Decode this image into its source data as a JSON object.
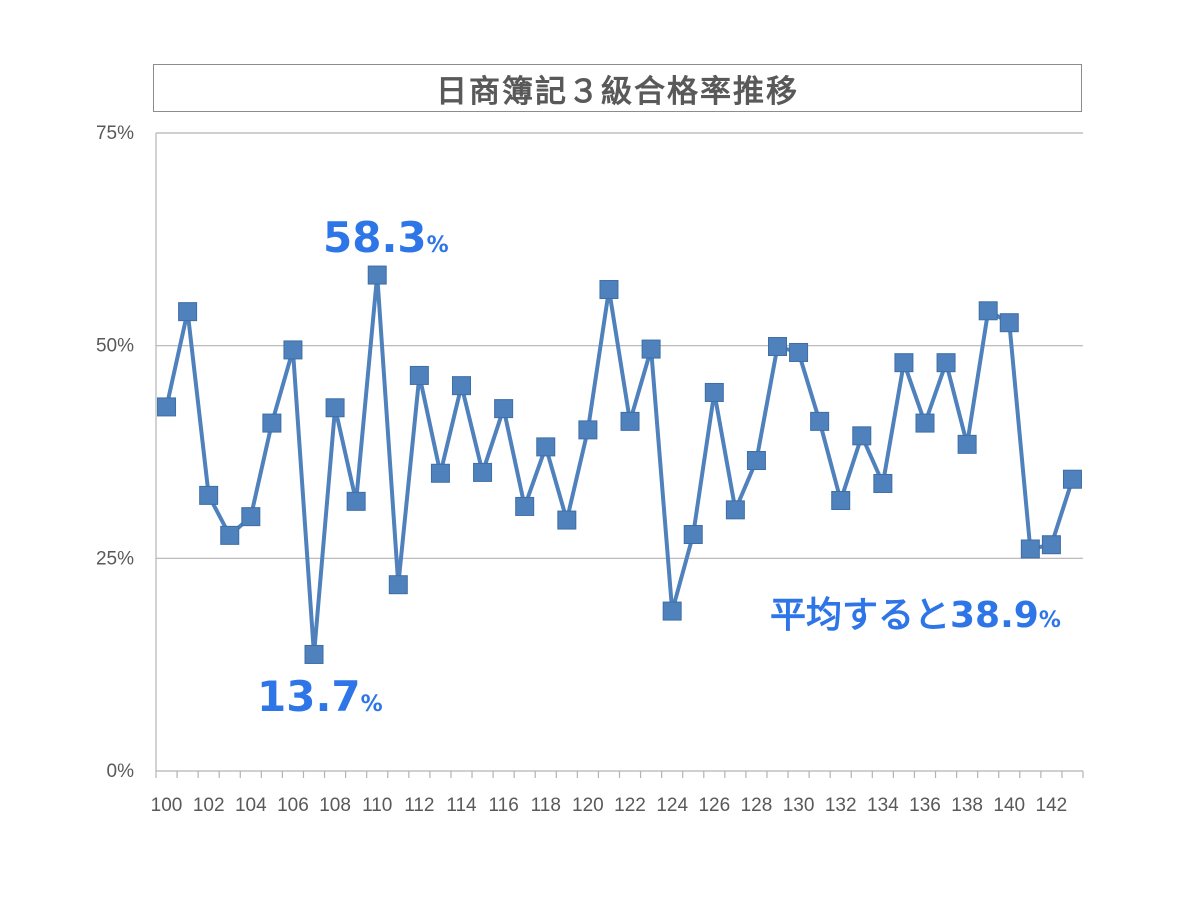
{
  "chart_data": {
    "type": "line",
    "title": "日商簿記３級合格率推移",
    "xlabel": "",
    "ylabel": "",
    "x": [
      100,
      101,
      102,
      103,
      104,
      105,
      106,
      107,
      108,
      109,
      110,
      111,
      112,
      113,
      114,
      115,
      116,
      117,
      118,
      119,
      120,
      121,
      122,
      123,
      124,
      125,
      126,
      127,
      128,
      129,
      130,
      131,
      132,
      133,
      134,
      135,
      136,
      137,
      138,
      139,
      140,
      141,
      142,
      143
    ],
    "x_tick_labels": [
      "100",
      "102",
      "104",
      "106",
      "108",
      "110",
      "112",
      "114",
      "116",
      "118",
      "120",
      "122",
      "124",
      "126",
      "128",
      "130",
      "132",
      "134",
      "136",
      "138",
      "140",
      "142"
    ],
    "ylim": [
      0,
      75
    ],
    "y_ticks": [
      0,
      25,
      50,
      75
    ],
    "y_tick_labels": [
      "0%",
      "25%",
      "50%",
      "75%"
    ],
    "grid": true,
    "series": [
      {
        "values": [
          42.8,
          54.0,
          32.4,
          27.7,
          29.9,
          40.9,
          49.5,
          13.7,
          42.7,
          31.7,
          58.3,
          21.9,
          46.5,
          35.0,
          45.3,
          35.1,
          42.6,
          31.1,
          38.1,
          29.5,
          40.1,
          56.6,
          41.1,
          49.6,
          18.8,
          27.8,
          44.5,
          30.7,
          36.5,
          49.9,
          49.2,
          41.1,
          31.8,
          39.4,
          33.8,
          48.0,
          40.9,
          48.0,
          38.4,
          54.1,
          52.7,
          26.1,
          26.6,
          34.3
        ],
        "color": "#4f81bd"
      }
    ],
    "annotations": [
      {
        "id": "max",
        "number": "58.3",
        "suffix": "%"
      },
      {
        "id": "min",
        "number": "13.7",
        "suffix": "%"
      },
      {
        "id": "avg",
        "number": "平均すると38.9",
        "suffix": "%"
      }
    ]
  }
}
